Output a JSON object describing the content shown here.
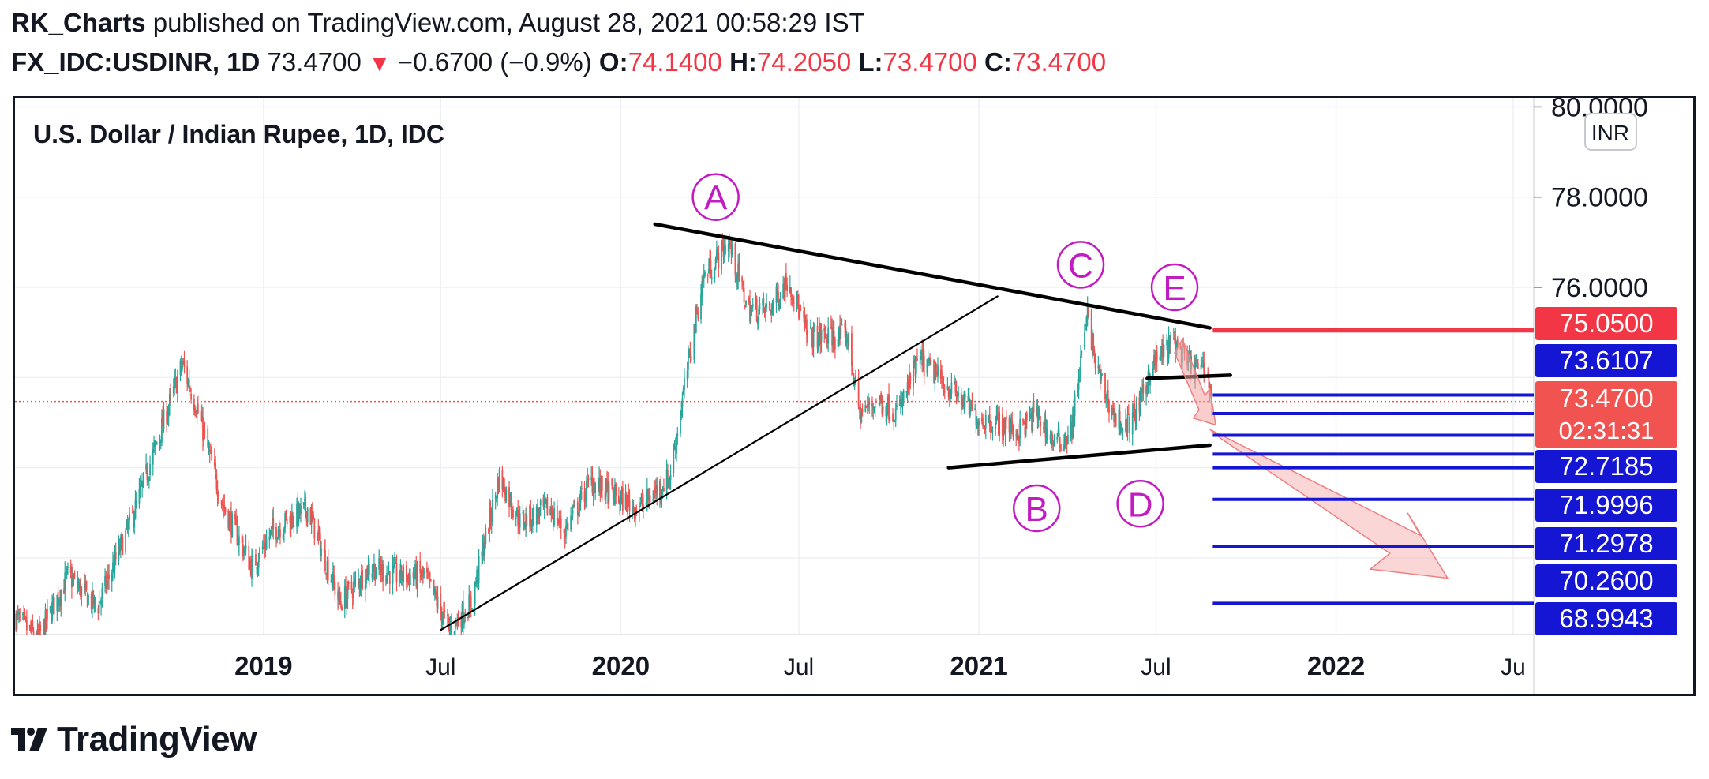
{
  "header": {
    "author": "RK_Charts",
    "published": "published on TradingView.com, August 28, 2021 00:58:29 IST",
    "symbol": "FX_IDC:USDINR, 1D",
    "last": "73.4700",
    "change": "−0.6700 (−0.9%)",
    "o_label": "O:",
    "o_val": "74.1400",
    "h_label": "H:",
    "h_val": "74.2050",
    "l_label": "L:",
    "l_val": "73.4700",
    "c_label": "C:",
    "c_val": "73.4700"
  },
  "footer": {
    "brand": "TradingView"
  },
  "chart_data": {
    "type": "candlestick",
    "title": "U.S. Dollar / Indian Rupee, 1D, IDC",
    "currency_badge": "INR",
    "y_axis_ticks": [
      "80.0000",
      "78.0000",
      "76.0000"
    ],
    "ylim": [
      68.3,
      80.2
    ],
    "x_axis_ticks": [
      "2019",
      "Jul",
      "2020",
      "Jul",
      "2021",
      "Jul",
      "2022",
      "Ju"
    ],
    "x_tick_dates": [
      "2019-01-01",
      "2019-07-01",
      "2020-01-01",
      "2020-07-01",
      "2021-01-01",
      "2021-07-01",
      "2022-01-01",
      "2022-07-01"
    ],
    "xlim": [
      "2018-04-22",
      "2022-07-22"
    ],
    "grid": true,
    "price_path": [
      [
        "2018-04-22",
        68.7
      ],
      [
        "2018-05-15",
        68.2
      ],
      [
        "2018-06-15",
        69.6
      ],
      [
        "2018-07-15",
        68.9
      ],
      [
        "2018-08-20",
        70.9
      ],
      [
        "2018-10-10",
        74.3
      ],
      [
        "2018-10-25",
        73.3
      ],
      [
        "2018-11-20",
        71.2
      ],
      [
        "2018-12-20",
        69.8
      ],
      [
        "2019-01-10",
        70.6
      ],
      [
        "2019-02-15",
        71.1
      ],
      [
        "2019-03-20",
        69.0
      ],
      [
        "2019-04-20",
        69.8
      ],
      [
        "2019-05-20",
        69.6
      ],
      [
        "2019-06-15",
        69.6
      ],
      [
        "2019-07-10",
        68.4
      ],
      [
        "2019-08-01",
        69.0
      ],
      [
        "2019-08-30",
        71.8
      ],
      [
        "2019-09-20",
        70.8
      ],
      [
        "2019-10-20",
        71.1
      ],
      [
        "2019-11-05",
        70.6
      ],
      [
        "2019-12-01",
        71.7
      ],
      [
        "2019-12-31",
        71.3
      ],
      [
        "2020-01-20",
        71.1
      ],
      [
        "2020-02-20",
        71.8
      ],
      [
        "2020-03-10",
        74.3
      ],
      [
        "2020-03-25",
        76.2
      ],
      [
        "2020-04-20",
        77.0
      ],
      [
        "2020-05-10",
        75.5
      ],
      [
        "2020-06-01",
        75.5
      ],
      [
        "2020-06-20",
        76.2
      ],
      [
        "2020-07-10",
        74.9
      ],
      [
        "2020-08-01",
        74.9
      ],
      [
        "2020-08-20",
        74.9
      ],
      [
        "2020-09-01",
        73.2
      ],
      [
        "2020-09-20",
        73.5
      ],
      [
        "2020-10-10",
        73.2
      ],
      [
        "2020-11-01",
        74.4
      ],
      [
        "2020-11-20",
        74.0
      ],
      [
        "2020-12-10",
        73.6
      ],
      [
        "2020-12-31",
        73.1
      ],
      [
        "2021-01-20",
        73.0
      ],
      [
        "2021-02-10",
        72.8
      ],
      [
        "2021-03-01",
        73.2
      ],
      [
        "2021-03-20",
        72.5
      ],
      [
        "2021-04-05",
        72.8
      ],
      [
        "2021-04-22",
        75.4
      ],
      [
        "2021-05-01",
        74.2
      ],
      [
        "2021-05-20",
        73.1
      ],
      [
        "2021-06-01",
        72.9
      ],
      [
        "2021-06-15",
        73.4
      ],
      [
        "2021-06-25",
        74.2
      ],
      [
        "2021-07-10",
        74.6
      ],
      [
        "2021-07-20",
        74.8
      ],
      [
        "2021-08-01",
        74.3
      ],
      [
        "2021-08-15",
        74.2
      ],
      [
        "2021-08-24",
        74.0
      ],
      [
        "2021-08-27",
        73.47
      ]
    ],
    "lines": [
      {
        "from": [
          "2020-02-05",
          77.4
        ],
        "to": [
          "2021-08-25",
          75.1
        ],
        "style": "bold"
      },
      {
        "from": [
          "2020-12-01",
          72.0
        ],
        "to": [
          "2021-08-25",
          72.5
        ],
        "style": "bold"
      },
      {
        "from": [
          "2019-07-01",
          68.4
        ],
        "to": [
          "2021-01-20",
          75.8
        ],
        "style": "thin"
      },
      {
        "from": [
          "2021-06-22",
          73.98
        ],
        "to": [
          "2021-09-15",
          74.05
        ],
        "style": "bold"
      }
    ],
    "wave_labels": [
      {
        "label": "A",
        "date": "2020-04-07",
        "price": 78.0
      },
      {
        "label": "B",
        "date": "2021-03-01",
        "price": 71.1
      },
      {
        "label": "C",
        "date": "2021-04-15",
        "price": 76.5
      },
      {
        "label": "D",
        "date": "2021-06-15",
        "price": 71.2
      },
      {
        "label": "E",
        "date": "2021-07-20",
        "price": 76.0
      }
    ],
    "horizontal_levels": [
      {
        "value": 75.05,
        "label": "75.0500",
        "color": "#f23645"
      },
      {
        "value": 73.6107,
        "label": "73.6107",
        "color": "#1515d4"
      },
      {
        "value": 72.7185,
        "label": "72.7185",
        "color": "#1515d4"
      },
      {
        "value": 71.9996,
        "label": "71.9996",
        "color": "#1515d4"
      },
      {
        "value": 71.2978,
        "label": "71.2978",
        "color": "#1515d4"
      },
      {
        "value": 70.26,
        "label": "70.2600",
        "color": "#1515d4"
      },
      {
        "value": 68.9943,
        "label": "68.9943",
        "color": "#1515d4"
      }
    ],
    "current_price": {
      "value": 73.47,
      "label": "73.4700",
      "countdown": "02:31:31",
      "color": "#f05350"
    },
    "colors": {
      "up": "#26a69a",
      "down": "#ef5350",
      "wave": "#c21bc2",
      "arrow": "#f5a4a4"
    }
  }
}
